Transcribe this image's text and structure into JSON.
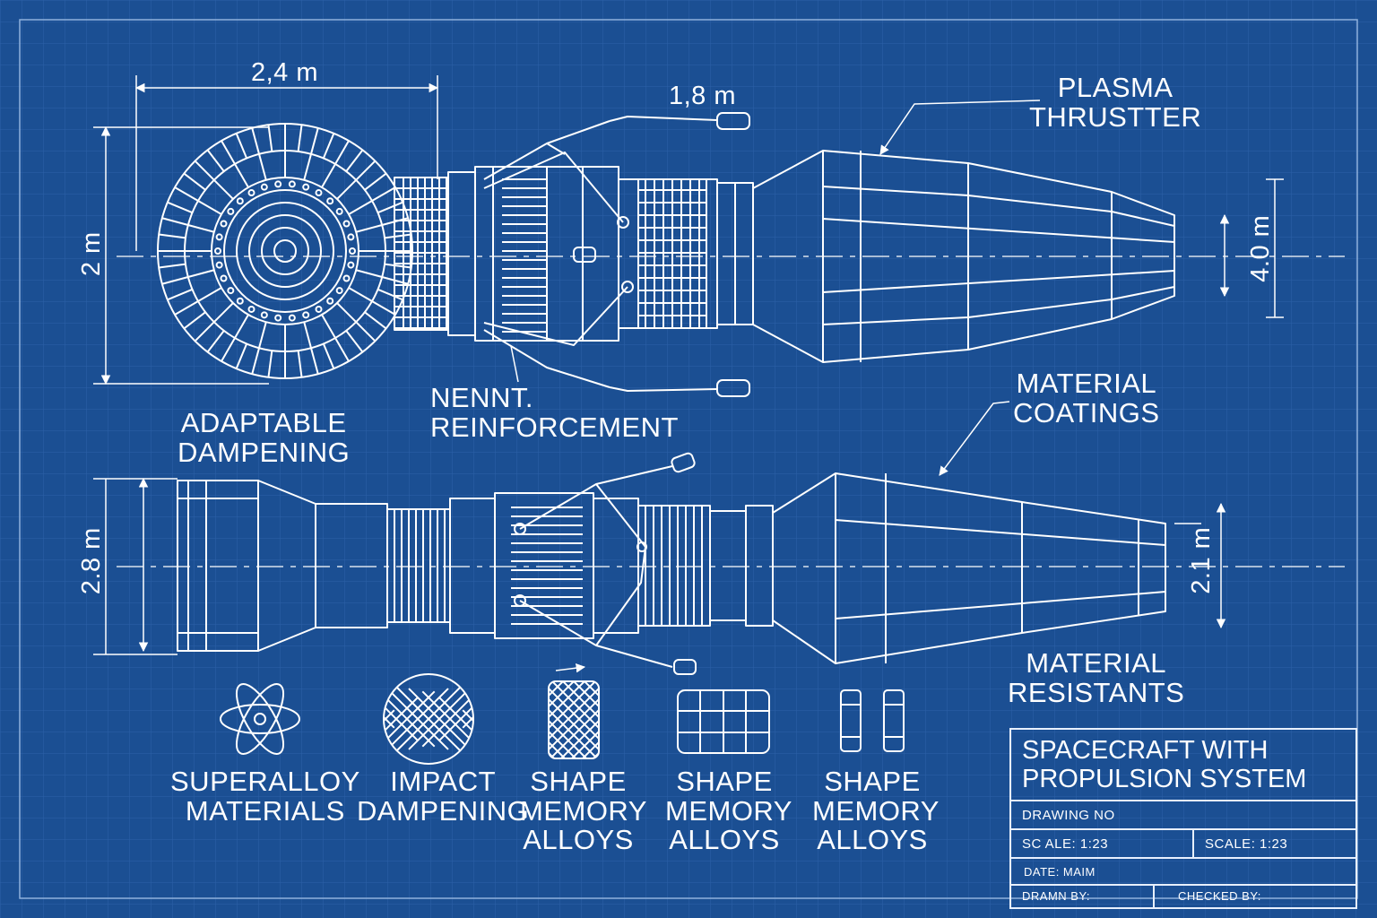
{
  "colors": {
    "background": "#1b4f93",
    "lines": "#ffffff",
    "grid": "#2a5fa3"
  },
  "dimensions": {
    "top_width": "2,4 m",
    "arm_length": "1,8 m",
    "top_height": "2 m",
    "nozzle_height": "4.0 m",
    "bottom_height": "2.8 m",
    "bottom_nozzle_height": "2.1 m"
  },
  "labels": {
    "plasma_thruster": [
      "PLASMA",
      "THRUSTTER"
    ],
    "adaptable_dampening": [
      "ADAPTABLE",
      "DAMPENING"
    ],
    "reinforcement": [
      "NENNT.",
      "REINFORCEMENT"
    ],
    "material_coatings": [
      "MATERIAL",
      "COATINGS"
    ],
    "material_resistants": [
      "MATERIAL",
      "RESISTANTS"
    ]
  },
  "legend": [
    {
      "icon": "atom-icon",
      "lines": [
        "SUPERALLOY",
        "MATERIALS"
      ]
    },
    {
      "icon": "mesh-sphere-icon",
      "lines": [
        "IMPACT",
        "DAMPENING"
      ]
    },
    {
      "icon": "lattice-panel-icon",
      "lines": [
        "SHAPE",
        "MEMORY",
        "ALLOYS"
      ]
    },
    {
      "icon": "grid-panel-icon",
      "lines": [
        "SHAPE",
        "MEMORY",
        "ALLOYS"
      ]
    },
    {
      "icon": "bar-pair-icon",
      "lines": [
        "SHAPE",
        "MEMORY",
        "ALLOYS"
      ]
    }
  ],
  "title_block": {
    "title": [
      "SPACECRAFT WITH",
      "PROPULSION SYSTEM"
    ],
    "drawing_no": "DRAWING NO",
    "scale_left": "SC ALE: 1:23",
    "scale_right": "SCALE:  1:23",
    "date": "DATE:    MAIM",
    "drawn_by": "DRAMN BY:",
    "checked_by": "CHECKED BY:"
  }
}
